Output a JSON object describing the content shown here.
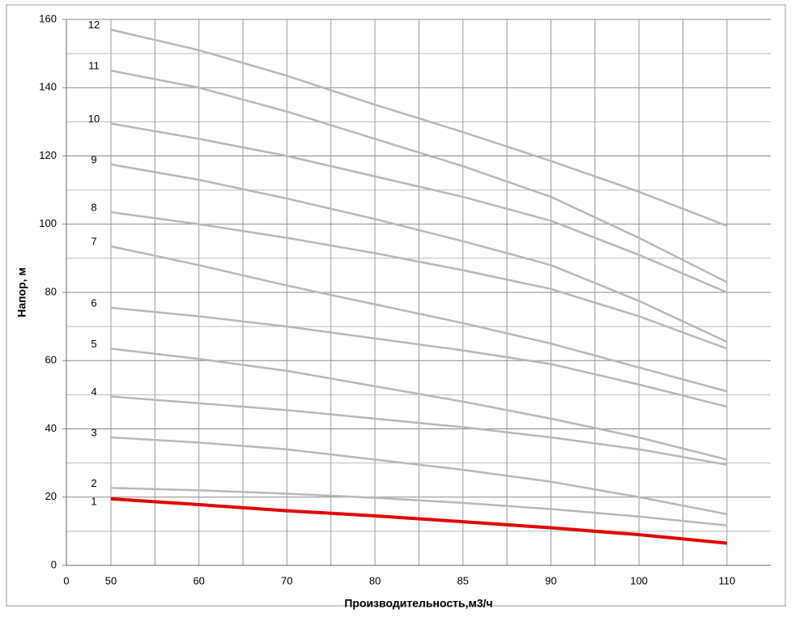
{
  "chart_data": {
    "type": "line",
    "x_label": "Производительность,м3/ч",
    "y_label": "Напор, м",
    "categories": [
      "0",
      "50",
      "60",
      "70",
      "80",
      "85",
      "90",
      "100",
      "110"
    ],
    "ylim": [
      0,
      160
    ],
    "yticks": [
      0,
      20,
      40,
      60,
      80,
      100,
      120,
      140,
      160
    ],
    "grid": true,
    "series": [
      {
        "name": "1",
        "color": "#e00000",
        "values": [
          null,
          19.5,
          17.8,
          16,
          14.5,
          12.8,
          11,
          9,
          6.5
        ]
      },
      {
        "name": "2",
        "color": "#b8b8b8",
        "values": [
          null,
          22.7,
          22,
          21,
          19.8,
          18.3,
          16.5,
          14.3,
          11.7
        ]
      },
      {
        "name": "3",
        "color": "#b8b8b8",
        "values": [
          null,
          37.5,
          36,
          34,
          31,
          28,
          24.5,
          20,
          15
        ]
      },
      {
        "name": "4",
        "color": "#b8b8b8",
        "values": [
          null,
          49.5,
          47.5,
          45.5,
          43,
          40.5,
          37.5,
          34,
          29.5
        ]
      },
      {
        "name": "5",
        "color": "#b8b8b8",
        "values": [
          null,
          63.5,
          60.5,
          57,
          52.5,
          48,
          43,
          37.5,
          31
        ]
      },
      {
        "name": "6",
        "color": "#b8b8b8",
        "values": [
          null,
          75.5,
          73,
          70,
          66.5,
          63,
          59,
          53,
          46.5
        ]
      },
      {
        "name": "7",
        "color": "#b8b8b8",
        "values": [
          null,
          93.5,
          88,
          82,
          76.5,
          71,
          65,
          58,
          51
        ]
      },
      {
        "name": "8",
        "color": "#b8b8b8",
        "values": [
          null,
          103.5,
          100,
          96,
          91.5,
          86.5,
          81,
          73,
          63.5
        ]
      },
      {
        "name": "9",
        "color": "#b8b8b8",
        "values": [
          null,
          117.5,
          113,
          107.5,
          101.5,
          95,
          88,
          77.5,
          65.5
        ]
      },
      {
        "name": "10",
        "color": "#b8b8b8",
        "values": [
          null,
          129.5,
          125,
          120,
          114,
          108,
          101,
          91,
          80
        ]
      },
      {
        "name": "11",
        "color": "#b8b8b8",
        "values": [
          null,
          145,
          140,
          133,
          125,
          117,
          108,
          96,
          83
        ]
      },
      {
        "name": "12",
        "color": "#b8b8b8",
        "values": [
          null,
          157,
          151,
          143.5,
          135,
          127,
          118.5,
          109.5,
          99.5
        ]
      }
    ]
  }
}
